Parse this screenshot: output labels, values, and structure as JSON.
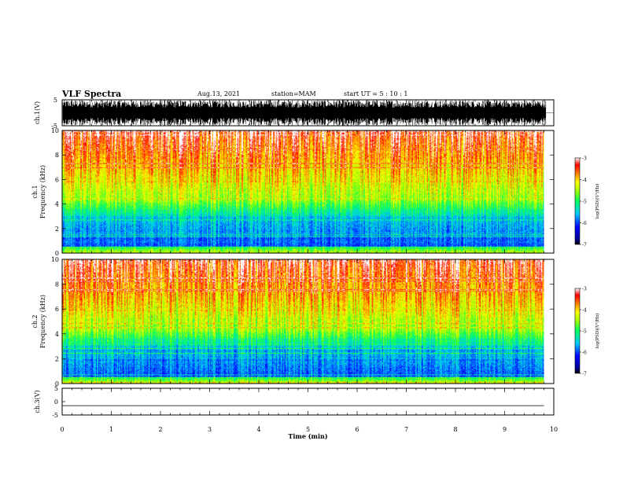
{
  "header": {
    "title": "VLF Spectra",
    "date": "Aug.13, 2021",
    "station": "station=MAM",
    "start": "start  UT  =   5  : 10 : 1"
  },
  "chart_data": [
    {
      "type": "line",
      "name": "waveform-ch1",
      "ylabel": "ch.1(V)",
      "ylim": [
        -5,
        5
      ],
      "yticks": [
        "5",
        "-5"
      ],
      "xlim": [
        0,
        10
      ],
      "signal": "noise-bursts"
    },
    {
      "type": "heatmap",
      "name": "spectrogram-ch1",
      "ylabel_line1": "ch.1",
      "ylabel_line2": "Frequency  (kHz)",
      "ylim": [
        0,
        10
      ],
      "yticks": [
        "0",
        "2",
        "4",
        "6",
        "8",
        "10"
      ],
      "xlim": [
        0,
        10
      ],
      "data_end_min": 9.8,
      "colorbar": {
        "label": "log(PSD)(V²/Hz)",
        "range": [
          -7,
          -3
        ],
        "ticks": [
          "-3",
          "-4",
          "-5",
          "-6",
          "-7"
        ]
      }
    },
    {
      "type": "heatmap",
      "name": "spectrogram-ch2",
      "ylabel_line1": "ch.2",
      "ylabel_line2": "Frequency  (kHz)",
      "ylim": [
        0,
        10
      ],
      "yticks": [
        "0",
        "2",
        "4",
        "6",
        "8",
        "10"
      ],
      "xlim": [
        0,
        10
      ],
      "data_end_min": 9.8,
      "colorbar": {
        "label": "log(PSD)(V²/Hz)",
        "range": [
          -7,
          -3
        ],
        "ticks": [
          "-3",
          "-4",
          "-5",
          "-6",
          "-7"
        ]
      }
    },
    {
      "type": "line",
      "name": "waveform-ch3",
      "ylabel": "ch.3(V)",
      "ylim": [
        -5,
        5
      ],
      "yticks": [
        "5",
        "0",
        "-5"
      ],
      "xlim": [
        0,
        10
      ],
      "values_constant": -1.5
    }
  ],
  "xaxis": {
    "label": "Time  (min)",
    "ticks": [
      "0",
      "1",
      "2",
      "3",
      "4",
      "5",
      "6",
      "7",
      "8",
      "9",
      "10"
    ]
  }
}
